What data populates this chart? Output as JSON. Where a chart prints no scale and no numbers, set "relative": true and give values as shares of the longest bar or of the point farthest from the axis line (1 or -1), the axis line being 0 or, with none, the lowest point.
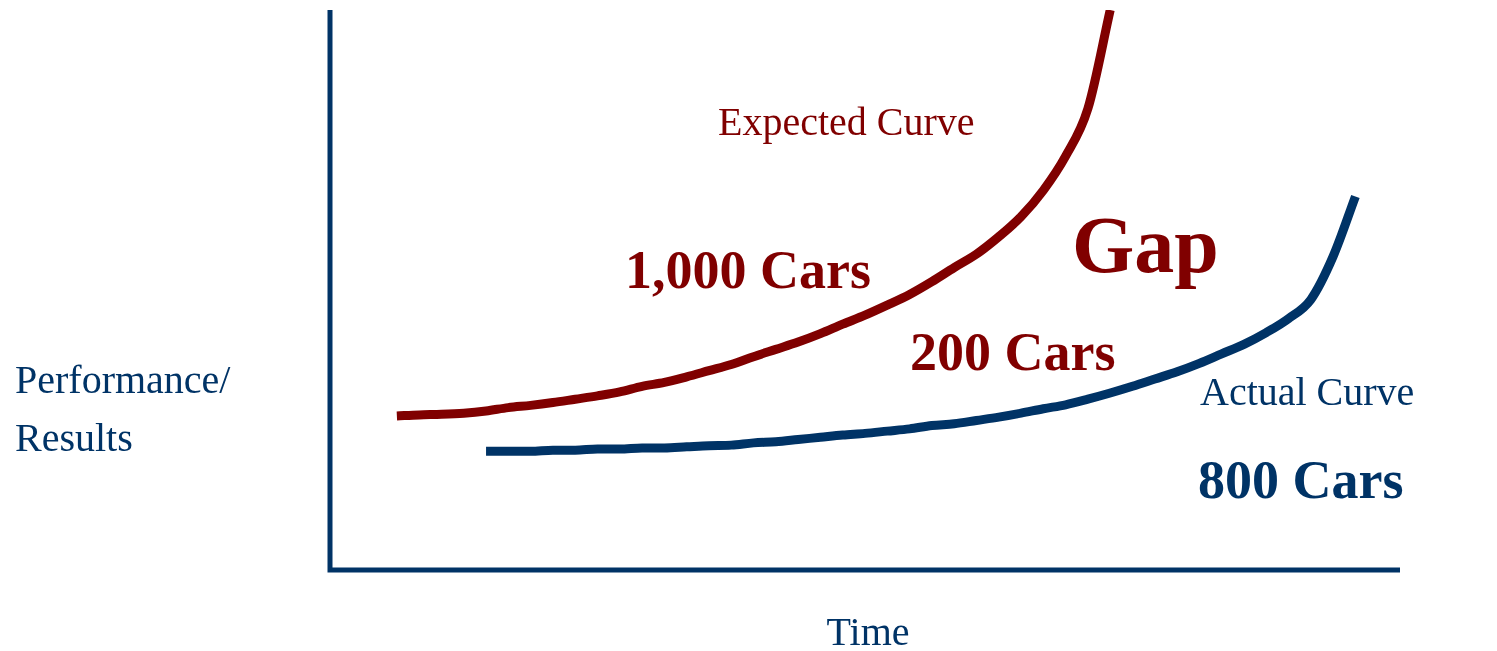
{
  "chart_data": {
    "type": "line",
    "relative": true,
    "legend": false,
    "marker": "none",
    "line_style": "solid",
    "xlabel": "Time",
    "ylabel": "Performance/ Results",
    "categories": [
      null,
      null,
      null,
      null,
      null,
      null,
      null,
      null,
      null,
      null,
      null,
      null,
      null,
      null,
      null,
      null,
      null,
      null,
      null,
      null,
      null,
      null,
      null,
      null,
      null,
      null,
      null,
      null,
      null,
      null,
      null,
      null,
      null,
      null,
      null,
      null,
      null,
      null,
      null,
      null,
      null,
      null,
      null,
      null,
      null,
      null,
      null,
      null,
      null
    ],
    "series": [
      {
        "name": "Expected Curve",
        "color": "#800000",
        "values": [
          null,
          null,
          null,
          0.275,
          0.277,
          0.278,
          0.28,
          0.284,
          0.29,
          0.294,
          0.299,
          0.305,
          0.311,
          0.318,
          0.328,
          0.335,
          0.345,
          0.356,
          0.367,
          0.381,
          0.394,
          0.407,
          0.422,
          0.439,
          0.455,
          0.473,
          0.492,
          0.515,
          0.54,
          0.564,
          0.595,
          0.631,
          0.678,
          0.739,
          0.824,
          1,
          null,
          null,
          null,
          null,
          null,
          null,
          null,
          null,
          null,
          null,
          null,
          null,
          null
        ]
      },
      {
        "name": "Actual Curve",
        "color": "#003366",
        "values": [
          null,
          null,
          null,
          null,
          null,
          null,
          null,
          0.212,
          0.212,
          0.212,
          0.214,
          0.214,
          0.216,
          0.216,
          0.218,
          0.218,
          0.22,
          0.222,
          0.223,
          0.227,
          0.229,
          0.233,
          0.237,
          0.241,
          0.244,
          0.248,
          0.252,
          0.258,
          0.261,
          0.267,
          0.273,
          0.28,
          0.288,
          0.295,
          0.305,
          0.316,
          0.328,
          0.341,
          0.354,
          0.369,
          0.386,
          0.403,
          0.424,
          0.449,
          0.483,
          0.56,
          0.667,
          null,
          null
        ]
      }
    ],
    "annotations": [
      "1,000 Cars",
      "Gap",
      "200 Cars",
      "800 Cars"
    ]
  }
}
